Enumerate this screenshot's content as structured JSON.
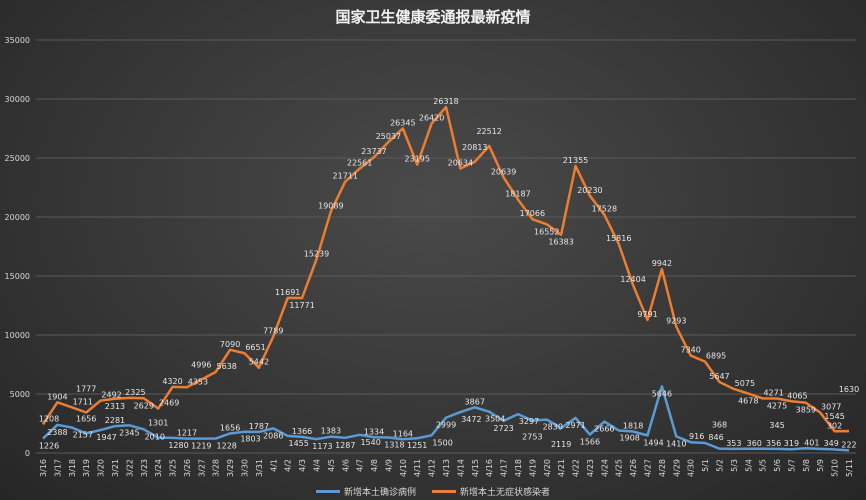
{
  "chart_data": {
    "type": "line",
    "stacked": true,
    "title": "国家卫生健康委通报最新疫情",
    "categories": [
      "3/16",
      "3/17",
      "3/18",
      "3/19",
      "3/20",
      "3/21",
      "3/22",
      "3/23",
      "3/24",
      "3/25",
      "3/26",
      "3/27",
      "3/28",
      "3/29",
      "3/30",
      "3/31",
      "4/1",
      "4/2",
      "4/3",
      "4/4",
      "4/5",
      "4/6",
      "4/7",
      "4/8",
      "4/9",
      "4/10",
      "4/11",
      "4/12",
      "4/13",
      "4/14",
      "4/15",
      "4/16",
      "4/17",
      "4/18",
      "4/19",
      "4/20",
      "4/21",
      "4/22",
      "4/23",
      "4/24",
      "4/25",
      "4/26",
      "4/27",
      "4/28",
      "4/29",
      "4/30",
      "5/1",
      "5/2",
      "5/3",
      "5/4",
      "5/5",
      "5/6",
      "5/7",
      "5/8",
      "5/9",
      "5/10",
      "5/11"
    ],
    "series": [
      {
        "name": "新增本土确诊病例",
        "color": "#5b9bd5",
        "values": [
          1226,
          2388,
          2157,
          1656,
          1947,
          2281,
          2345,
          2010,
          1301,
          1280,
          1217,
          1219,
          1228,
          1656,
          1803,
          1787,
          2086,
          1455,
          1366,
          1173,
          1383,
          1287,
          1540,
          1334,
          1318,
          1164,
          1251,
          1500,
          2999,
          3472,
          3867,
          3504,
          2723,
          3297,
          2753,
          2830,
          2119,
          2971,
          1566,
          2666,
          1908,
          1818,
          1494,
          5646,
          1410,
          916,
          846,
          368,
          353,
          360,
          356,
          345,
          319,
          401,
          349,
          302,
          222
        ]
      },
      {
        "name": "新增本土无症状感染者",
        "color": "#ed7d31",
        "values": [
          1208,
          1904,
          1711,
          1777,
          2492,
          2313,
          2325,
          2629,
          2469,
          4320,
          4353,
          4996,
          5638,
          7090,
          6651,
          5442,
          7789,
          11691,
          11771,
          15239,
          19089,
          21711,
          22561,
          23737,
          25037,
          26345,
          23195,
          26420,
          26318,
          20634,
          20813,
          22512,
          20639,
          18187,
          17066,
          16552,
          16383,
          21355,
          20230,
          17528,
          15816,
          12404,
          9791,
          9942,
          9293,
          7340,
          6895,
          5647,
          5075,
          4678,
          4271,
          4275,
          4065,
          3859,
          3077,
          1545,
          1630
        ]
      }
    ],
    "ylim": [
      0,
      35000
    ],
    "yticks": [
      "0",
      "5000",
      "10000",
      "15000",
      "20000",
      "25000",
      "30000",
      "35000"
    ],
    "grid": true,
    "legend": "bottom"
  }
}
